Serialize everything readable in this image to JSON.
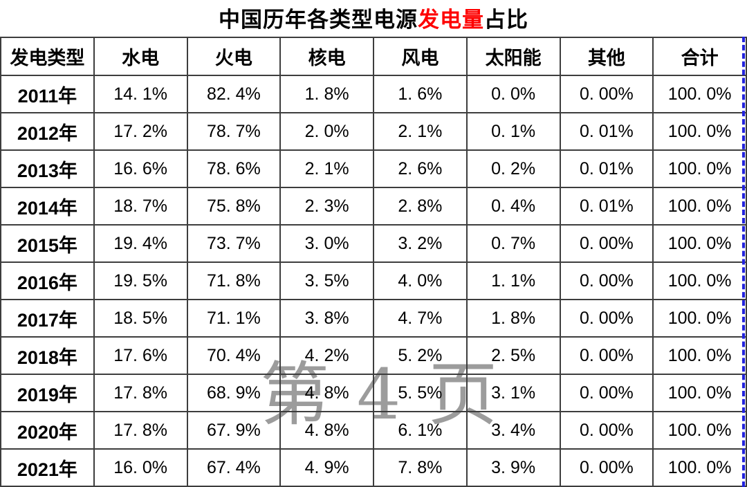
{
  "title": {
    "prefix": "中国历年各类型电源",
    "highlight": "发电量",
    "suffix": "占比",
    "highlight_color": "#fe0000"
  },
  "watermark": "第 4 页",
  "colors": {
    "grid_border": "#3d3d3d",
    "watermark_gray": "#9c9c9c",
    "page_break_blue": "#2222dd",
    "title_highlight_red": "#fe0000"
  },
  "chart_data": {
    "type": "table",
    "title": "中国历年各类型电源发电量占比",
    "columns": [
      "发电类型",
      "水电",
      "火电",
      "核电",
      "风电",
      "太阳能",
      "其他",
      "合计"
    ],
    "rows": [
      {
        "year": "2011年",
        "values": [
          "14. 1%",
          "82. 4%",
          "1. 8%",
          "1. 6%",
          "0. 0%",
          "0. 00%",
          "100. 0%"
        ]
      },
      {
        "year": "2012年",
        "values": [
          "17. 2%",
          "78. 7%",
          "2. 0%",
          "2. 1%",
          "0. 1%",
          "0. 01%",
          "100. 0%"
        ]
      },
      {
        "year": "2013年",
        "values": [
          "16. 6%",
          "78. 6%",
          "2. 1%",
          "2. 6%",
          "0. 2%",
          "0. 01%",
          "100. 0%"
        ]
      },
      {
        "year": "2014年",
        "values": [
          "18. 7%",
          "75. 8%",
          "2. 3%",
          "2. 8%",
          "0. 4%",
          "0. 01%",
          "100. 0%"
        ]
      },
      {
        "year": "2015年",
        "values": [
          "19. 4%",
          "73. 7%",
          "3. 0%",
          "3. 2%",
          "0. 7%",
          "0. 00%",
          "100. 0%"
        ]
      },
      {
        "year": "2016年",
        "values": [
          "19. 5%",
          "71. 8%",
          "3. 5%",
          "4. 0%",
          "1. 1%",
          "0. 00%",
          "100. 0%"
        ]
      },
      {
        "year": "2017年",
        "values": [
          "18. 5%",
          "71. 1%",
          "3. 8%",
          "4. 7%",
          "1. 8%",
          "0. 00%",
          "100. 0%"
        ]
      },
      {
        "year": "2018年",
        "values": [
          "17. 6%",
          "70. 4%",
          "4. 2%",
          "5. 2%",
          "2. 5%",
          "0. 00%",
          "100. 0%"
        ]
      },
      {
        "year": "2019年",
        "values": [
          "17. 8%",
          "68. 9%",
          "4. 8%",
          "5. 5%",
          "3. 1%",
          "0. 00%",
          "100. 0%"
        ]
      },
      {
        "year": "2020年",
        "values": [
          "17. 8%",
          "67. 9%",
          "4. 8%",
          "6. 1%",
          "3. 4%",
          "0. 00%",
          "100. 0%"
        ]
      },
      {
        "year": "2021年",
        "values": [
          "16. 0%",
          "67. 4%",
          "4. 9%",
          "7. 8%",
          "3. 9%",
          "0. 00%",
          "100. 0%"
        ]
      }
    ]
  }
}
